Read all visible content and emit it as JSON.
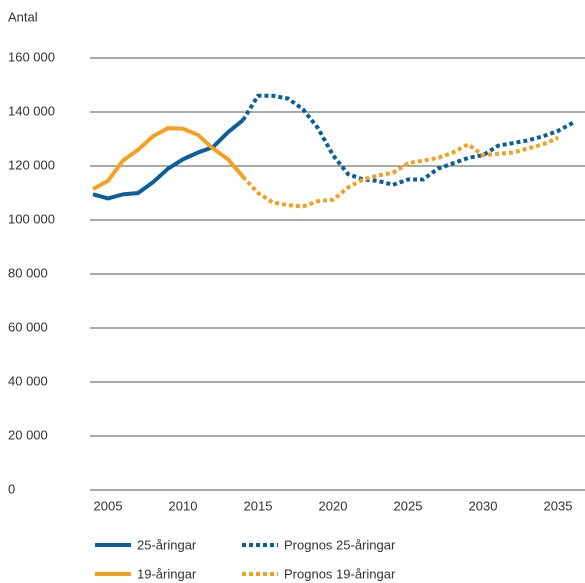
{
  "chart_data": {
    "type": "line",
    "y_label": "Antal",
    "x": [
      2004,
      2005,
      2006,
      2007,
      2008,
      2009,
      2010,
      2011,
      2012,
      2013,
      2014,
      2015,
      2016,
      2017,
      2018,
      2019,
      2020,
      2021,
      2022,
      2023,
      2024,
      2025,
      2026,
      2027,
      2028,
      2029,
      2030,
      2031,
      2032,
      2033,
      2034,
      2035,
      2036
    ],
    "xlim": [
      2003.8,
      2036.8
    ],
    "xticks": [
      2005,
      2010,
      2015,
      2020,
      2025,
      2030,
      2035
    ],
    "ylim": [
      0,
      160000
    ],
    "yticks": [
      0,
      {
        "value": 20000,
        "label": "20 000"
      },
      {
        "value": 40000,
        "label": "40 000"
      },
      {
        "value": 60000,
        "label": "60 000"
      },
      {
        "value": 80000,
        "label": "80 000"
      },
      {
        "value": 100000,
        "label": "100 000"
      },
      {
        "value": 120000,
        "label": "120 000"
      },
      {
        "value": 140000,
        "label": "140 000"
      },
      {
        "value": 160000,
        "label": "160 000"
      }
    ],
    "grid": true,
    "series": [
      {
        "name": "25-åringar",
        "color": "#0a5e9c",
        "dashed": false,
        "values": [
          109500,
          108000,
          109500,
          110000,
          114000,
          119000,
          122500,
          125000,
          127000,
          132500,
          137000,
          null,
          null,
          null,
          null,
          null,
          null,
          null,
          null,
          null,
          null,
          null,
          null,
          null,
          null,
          null,
          null,
          null,
          null,
          null,
          null,
          null,
          null
        ]
      },
      {
        "name": "Prognos 25-åringar",
        "color": "#0a5e9c",
        "dashed": true,
        "values": [
          null,
          null,
          null,
          null,
          null,
          null,
          null,
          null,
          null,
          null,
          137000,
          146000,
          146000,
          145000,
          141000,
          134000,
          124000,
          117000,
          115000,
          114500,
          113000,
          115000,
          115000,
          119000,
          121000,
          123000,
          124000,
          127500,
          128500,
          129500,
          131000,
          133000,
          136000
        ]
      },
      {
        "name": "19-åringar",
        "color": "#f5a020",
        "dashed": false,
        "values": [
          111500,
          114500,
          122000,
          126000,
          131000,
          134000,
          133800,
          131500,
          126500,
          122500,
          116000,
          null,
          null,
          null,
          null,
          null,
          null,
          null,
          null,
          null,
          null,
          null,
          null,
          null,
          null,
          null,
          null,
          null,
          null,
          null,
          null,
          null,
          null
        ]
      },
      {
        "name": "Prognos 19-åringar",
        "color": "#f5a020",
        "dashed": true,
        "values": [
          null,
          null,
          null,
          null,
          null,
          null,
          null,
          null,
          null,
          null,
          116000,
          110000,
          106500,
          105500,
          105000,
          107000,
          107500,
          112000,
          115000,
          116500,
          117500,
          121000,
          122000,
          123000,
          125000,
          128000,
          124000,
          124500,
          125000,
          126500,
          128000,
          130500,
          null
        ]
      }
    ]
  }
}
